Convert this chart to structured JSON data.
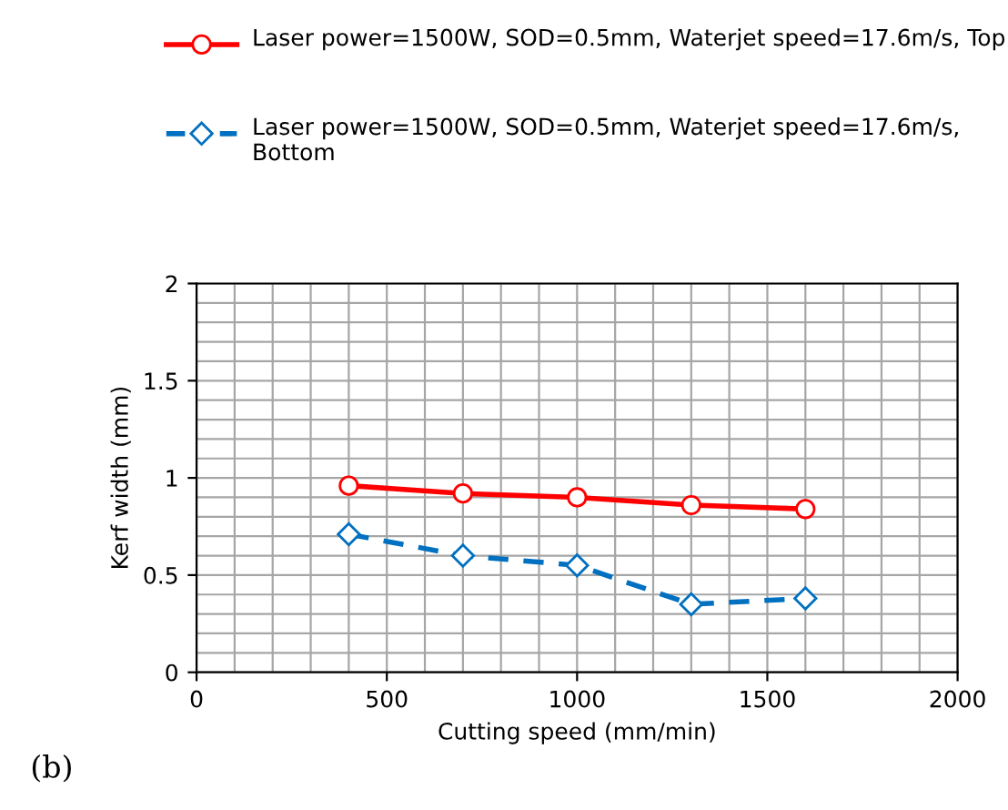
{
  "chart_data": {
    "type": "line",
    "xlabel": "Cutting speed (mm/min)",
    "ylabel": "Kerf width (mm)",
    "x": [
      400,
      700,
      1000,
      1300,
      1600
    ],
    "series": [
      {
        "name": "Laser power=1500W, SOD=0.5mm, Waterjet speed=17.6m/s, Top",
        "color": "#ff0000",
        "values": [
          0.96,
          0.92,
          0.9,
          0.86,
          0.84
        ],
        "marker": "circle",
        "line_style": "solid"
      },
      {
        "name": "Laser power=1500W, SOD=0.5mm, Waterjet speed=17.6m/s, Bottom",
        "color": "#0070c0",
        "values": [
          0.71,
          0.6,
          0.55,
          0.35,
          0.38
        ],
        "marker": "diamond",
        "line_style": "dashed"
      }
    ],
    "xlim": [
      0,
      2000
    ],
    "xticks": [
      0,
      500,
      1000,
      1500,
      2000
    ],
    "ylim": [
      0,
      2
    ],
    "yticks": [
      0,
      0.5,
      1,
      1.5,
      2
    ],
    "grid": true,
    "legend": "top",
    "annotations": [
      "(b)"
    ]
  }
}
